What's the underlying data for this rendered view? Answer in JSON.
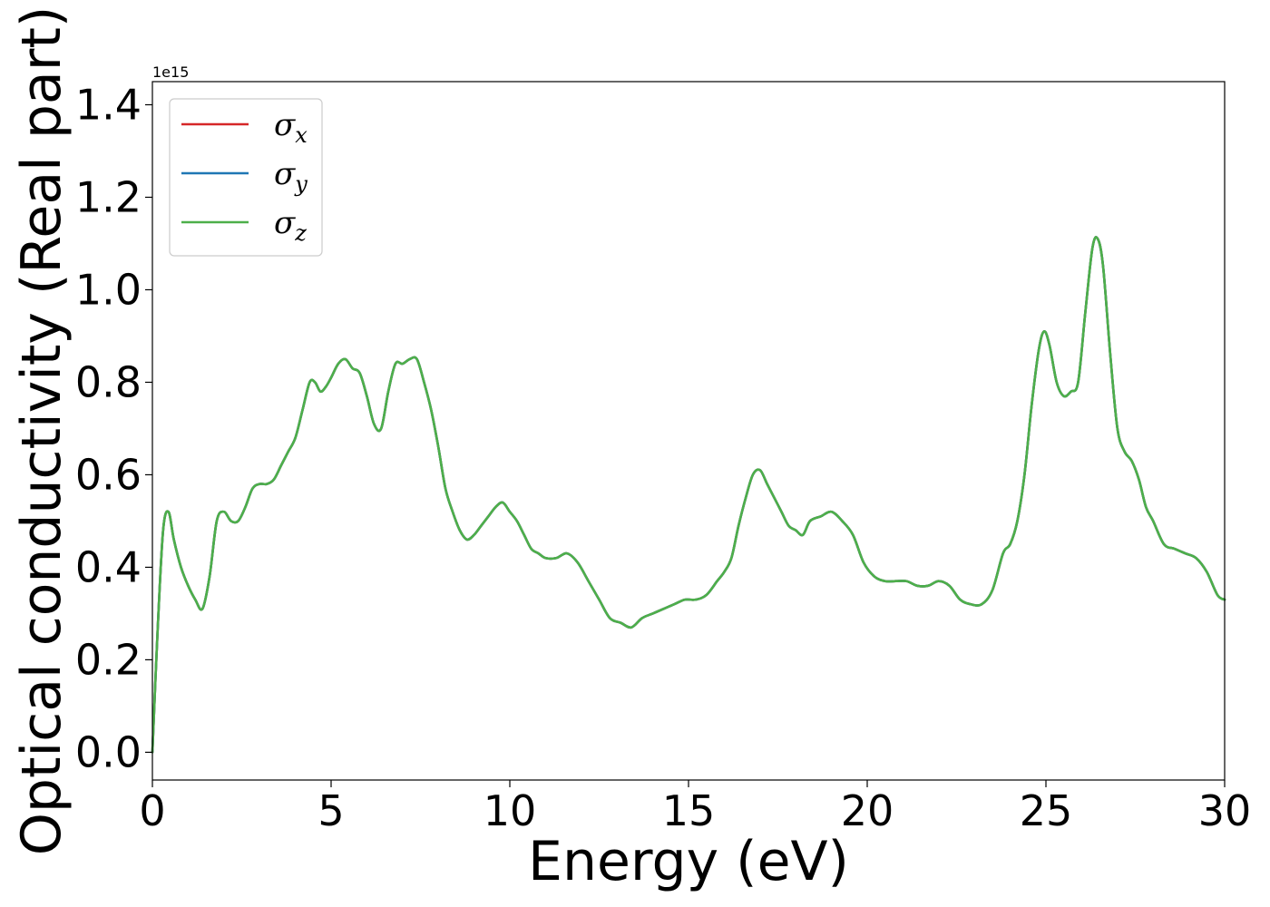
{
  "chart_data": {
    "type": "line",
    "xlabel": "Energy (eV)",
    "ylabel": "Optical conductivity (Real part)",
    "y_offset_label": "1e15",
    "xlim": [
      0,
      30
    ],
    "ylim": [
      -0.06,
      1.45
    ],
    "x_ticks": [
      0,
      5,
      10,
      15,
      20,
      25,
      30
    ],
    "x_tick_labels": [
      "0",
      "5",
      "10",
      "15",
      "20",
      "25",
      "30"
    ],
    "y_ticks": [
      0.0,
      0.2,
      0.4,
      0.6,
      0.8,
      1.0,
      1.2,
      1.4
    ],
    "y_tick_labels": [
      "0.0",
      "0.2",
      "0.4",
      "0.6",
      "0.8",
      "1.0",
      "1.2",
      "1.4"
    ],
    "grid": false,
    "legend_position": "top-left",
    "x": [
      0,
      0.15,
      0.3,
      0.45,
      0.6,
      0.8,
      1.0,
      1.2,
      1.4,
      1.6,
      1.8,
      2.0,
      2.2,
      2.4,
      2.6,
      2.8,
      3.0,
      3.2,
      3.4,
      3.6,
      3.8,
      4.0,
      4.2,
      4.4,
      4.55,
      4.7,
      4.85,
      5.0,
      5.2,
      5.4,
      5.6,
      5.8,
      6.0,
      6.2,
      6.4,
      6.6,
      6.8,
      7.0,
      7.2,
      7.4,
      7.6,
      7.8,
      8.0,
      8.2,
      8.4,
      8.6,
      8.8,
      9.0,
      9.2,
      9.4,
      9.6,
      9.8,
      10.0,
      10.2,
      10.4,
      10.6,
      10.8,
      11.0,
      11.3,
      11.6,
      11.9,
      12.2,
      12.5,
      12.8,
      13.1,
      13.4,
      13.7,
      14.0,
      14.3,
      14.6,
      14.9,
      15.2,
      15.5,
      15.8,
      16.0,
      16.2,
      16.4,
      16.6,
      16.8,
      17.0,
      17.2,
      17.4,
      17.6,
      17.8,
      18.0,
      18.2,
      18.4,
      18.7,
      19.0,
      19.3,
      19.6,
      19.9,
      20.2,
      20.5,
      20.8,
      21.1,
      21.4,
      21.7,
      22.0,
      22.3,
      22.6,
      22.9,
      23.2,
      23.5,
      23.8,
      24.0,
      24.2,
      24.4,
      24.6,
      24.8,
      24.95,
      25.1,
      25.3,
      25.5,
      25.7,
      25.9,
      26.1,
      26.3,
      26.45,
      26.6,
      26.8,
      27.0,
      27.2,
      27.4,
      27.6,
      27.8,
      28.0,
      28.3,
      28.6,
      28.9,
      29.2,
      29.5,
      29.8,
      30.0
    ],
    "series": [
      {
        "name": "σx",
        "color": "#d62728",
        "values": [
          0.0,
          0.27,
          0.48,
          0.52,
          0.46,
          0.4,
          0.36,
          0.33,
          0.31,
          0.38,
          0.5,
          0.52,
          0.5,
          0.5,
          0.53,
          0.57,
          0.58,
          0.58,
          0.59,
          0.62,
          0.65,
          0.68,
          0.74,
          0.8,
          0.8,
          0.78,
          0.79,
          0.81,
          0.84,
          0.85,
          0.83,
          0.82,
          0.77,
          0.71,
          0.7,
          0.78,
          0.84,
          0.84,
          0.85,
          0.85,
          0.8,
          0.74,
          0.66,
          0.57,
          0.52,
          0.48,
          0.46,
          0.47,
          0.49,
          0.51,
          0.53,
          0.54,
          0.52,
          0.5,
          0.47,
          0.44,
          0.43,
          0.42,
          0.42,
          0.43,
          0.41,
          0.37,
          0.33,
          0.29,
          0.28,
          0.27,
          0.29,
          0.3,
          0.31,
          0.32,
          0.33,
          0.33,
          0.34,
          0.37,
          0.39,
          0.42,
          0.49,
          0.55,
          0.6,
          0.61,
          0.58,
          0.55,
          0.52,
          0.49,
          0.48,
          0.47,
          0.5,
          0.51,
          0.52,
          0.5,
          0.47,
          0.41,
          0.38,
          0.37,
          0.37,
          0.37,
          0.36,
          0.36,
          0.37,
          0.36,
          0.33,
          0.32,
          0.32,
          0.35,
          0.43,
          0.45,
          0.5,
          0.6,
          0.75,
          0.87,
          0.91,
          0.88,
          0.8,
          0.77,
          0.78,
          0.8,
          0.95,
          1.09,
          1.11,
          1.05,
          0.86,
          0.7,
          0.65,
          0.63,
          0.59,
          0.53,
          0.5,
          0.45,
          0.44,
          0.43,
          0.42,
          0.39,
          0.34,
          0.33
        ]
      },
      {
        "name": "σy",
        "color": "#1f77b4",
        "values": [
          0.0,
          0.27,
          0.48,
          0.52,
          0.46,
          0.4,
          0.36,
          0.33,
          0.31,
          0.38,
          0.5,
          0.52,
          0.5,
          0.5,
          0.53,
          0.57,
          0.58,
          0.58,
          0.59,
          0.62,
          0.65,
          0.68,
          0.74,
          0.8,
          0.8,
          0.78,
          0.79,
          0.81,
          0.84,
          0.85,
          0.83,
          0.82,
          0.77,
          0.71,
          0.7,
          0.78,
          0.84,
          0.84,
          0.85,
          0.85,
          0.8,
          0.74,
          0.66,
          0.57,
          0.52,
          0.48,
          0.46,
          0.47,
          0.49,
          0.51,
          0.53,
          0.54,
          0.52,
          0.5,
          0.47,
          0.44,
          0.43,
          0.42,
          0.42,
          0.43,
          0.41,
          0.37,
          0.33,
          0.29,
          0.28,
          0.27,
          0.29,
          0.3,
          0.31,
          0.32,
          0.33,
          0.33,
          0.34,
          0.37,
          0.39,
          0.42,
          0.49,
          0.55,
          0.6,
          0.61,
          0.58,
          0.55,
          0.52,
          0.49,
          0.48,
          0.47,
          0.5,
          0.51,
          0.52,
          0.5,
          0.47,
          0.41,
          0.38,
          0.37,
          0.37,
          0.37,
          0.36,
          0.36,
          0.37,
          0.36,
          0.33,
          0.32,
          0.32,
          0.35,
          0.43,
          0.45,
          0.5,
          0.6,
          0.75,
          0.87,
          0.91,
          0.88,
          0.8,
          0.77,
          0.78,
          0.8,
          0.95,
          1.09,
          1.11,
          1.05,
          0.86,
          0.7,
          0.65,
          0.63,
          0.59,
          0.53,
          0.5,
          0.45,
          0.44,
          0.43,
          0.42,
          0.39,
          0.34,
          0.33
        ]
      },
      {
        "name": "σz",
        "color": "#4daf4a",
        "values": [
          0.0,
          0.27,
          0.48,
          0.52,
          0.46,
          0.4,
          0.36,
          0.33,
          0.31,
          0.38,
          0.5,
          0.52,
          0.5,
          0.5,
          0.53,
          0.57,
          0.58,
          0.58,
          0.59,
          0.62,
          0.65,
          0.68,
          0.74,
          0.8,
          0.8,
          0.78,
          0.79,
          0.81,
          0.84,
          0.85,
          0.83,
          0.82,
          0.77,
          0.71,
          0.7,
          0.78,
          0.84,
          0.84,
          0.85,
          0.85,
          0.8,
          0.74,
          0.66,
          0.57,
          0.52,
          0.48,
          0.46,
          0.47,
          0.49,
          0.51,
          0.53,
          0.54,
          0.52,
          0.5,
          0.47,
          0.44,
          0.43,
          0.42,
          0.42,
          0.43,
          0.41,
          0.37,
          0.33,
          0.29,
          0.28,
          0.27,
          0.29,
          0.3,
          0.31,
          0.32,
          0.33,
          0.33,
          0.34,
          0.37,
          0.39,
          0.42,
          0.49,
          0.55,
          0.6,
          0.61,
          0.58,
          0.55,
          0.52,
          0.49,
          0.48,
          0.47,
          0.5,
          0.51,
          0.52,
          0.5,
          0.47,
          0.41,
          0.38,
          0.37,
          0.37,
          0.37,
          0.36,
          0.36,
          0.37,
          0.36,
          0.33,
          0.32,
          0.32,
          0.35,
          0.43,
          0.45,
          0.5,
          0.6,
          0.75,
          0.87,
          0.91,
          0.88,
          0.8,
          0.77,
          0.78,
          0.8,
          0.95,
          1.09,
          1.11,
          1.05,
          0.86,
          0.7,
          0.65,
          0.63,
          0.59,
          0.53,
          0.5,
          0.45,
          0.44,
          0.43,
          0.42,
          0.39,
          0.34,
          0.33
        ]
      }
    ],
    "legend": [
      {
        "symbol": "σ",
        "sub": "x"
      },
      {
        "symbol": "σ",
        "sub": "y"
      },
      {
        "symbol": "σ",
        "sub": "z"
      }
    ]
  }
}
